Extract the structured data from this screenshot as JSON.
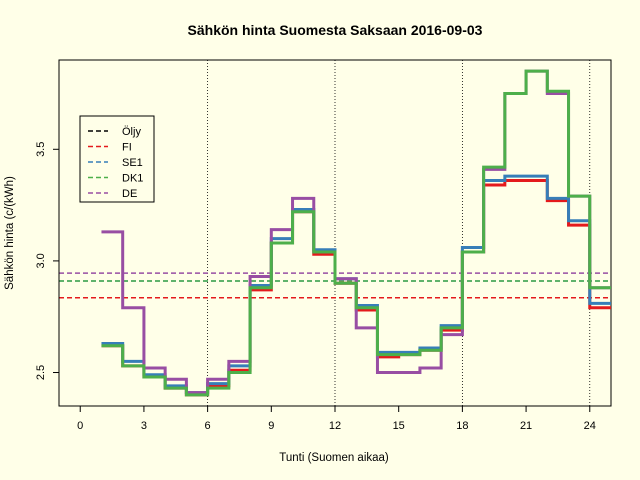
{
  "chart_data": {
    "type": "line",
    "title": "Sähkön hinta Suomesta Saksaan 2016-09-03",
    "xlabel": "Tunti (Suomen aikaa)",
    "ylabel": "Sähkön hinta (c/(kWh)",
    "xlim": [
      -1,
      25
    ],
    "ylim": [
      2.35,
      3.9
    ],
    "x_ticks": [
      0,
      3,
      6,
      9,
      12,
      15,
      18,
      21,
      24
    ],
    "y_ticks": [
      2.5,
      3.0,
      3.5
    ],
    "vlines": [
      6,
      12,
      18,
      24
    ],
    "background": "#ffffe8",
    "legend_position": "top-left",
    "series": [
      {
        "name": "Öljy",
        "color": "#000000",
        "dashed": true,
        "values": []
      },
      {
        "name": "FI",
        "color": "#e41a1c",
        "dashed": true,
        "hline": 2.835,
        "values": [
          2.62,
          2.53,
          2.48,
          2.43,
          2.4,
          2.44,
          2.51,
          2.87,
          3.08,
          3.22,
          3.03,
          2.9,
          2.78,
          2.57,
          2.58,
          2.6,
          2.69,
          3.04,
          3.34,
          3.36,
          3.36,
          3.27,
          3.16,
          2.79
        ]
      },
      {
        "name": "SE1",
        "color": "#377eb8",
        "dashed": true,
        "hline": 2.91,
        "values": [
          2.63,
          2.55,
          2.49,
          2.44,
          2.41,
          2.45,
          2.53,
          2.89,
          3.1,
          3.23,
          3.05,
          2.92,
          2.8,
          2.59,
          2.59,
          2.61,
          2.71,
          3.06,
          3.36,
          3.38,
          3.38,
          3.28,
          3.18,
          2.81
        ]
      },
      {
        "name": "DK1",
        "color": "#4daf4a",
        "dashed": true,
        "hline": 2.91,
        "values": [
          2.62,
          2.53,
          2.48,
          2.43,
          2.4,
          2.43,
          2.5,
          2.88,
          3.08,
          3.22,
          3.04,
          2.9,
          2.79,
          2.58,
          2.58,
          2.6,
          2.7,
          3.04,
          3.42,
          3.75,
          3.85,
          3.76,
          3.29,
          2.88
        ]
      },
      {
        "name": "DE",
        "color": "#984ea3",
        "dashed": true,
        "hline": 2.945,
        "values": [
          3.13,
          2.79,
          2.52,
          2.47,
          2.41,
          2.47,
          2.55,
          2.93,
          3.14,
          3.28,
          3.04,
          2.92,
          2.7,
          2.5,
          2.5,
          2.52,
          2.67,
          3.04,
          3.41,
          3.75,
          3.85,
          3.75,
          3.29,
          2.88
        ]
      }
    ],
    "draw_order": [
      "FI",
      "SE1",
      "DE",
      "DK1"
    ]
  }
}
